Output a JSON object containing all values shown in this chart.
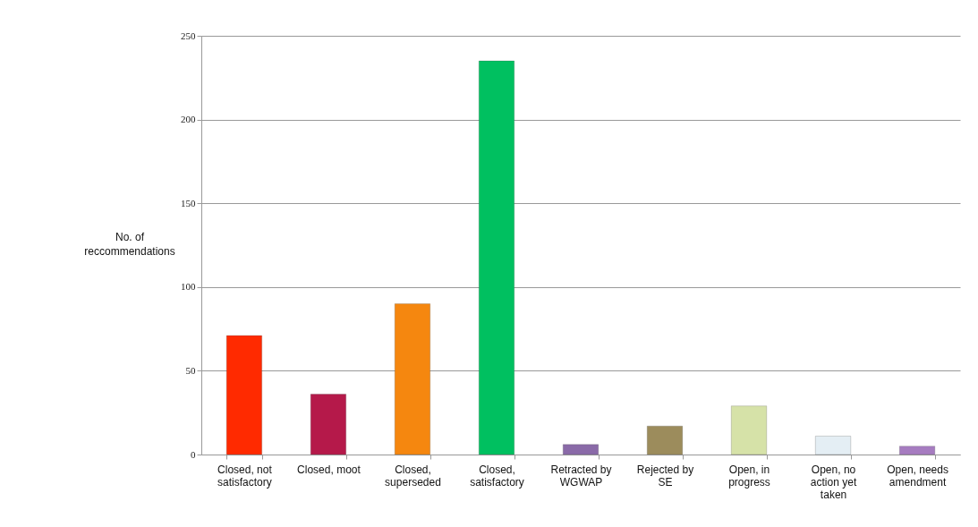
{
  "chart_data": {
    "type": "bar",
    "ylabel": "No. of reccommendations",
    "categories": [
      "Closed, not satisfactory",
      "Closed, moot",
      "Closed, superseded",
      "Closed, satisfactory",
      "Retracted by WGWAP",
      "Rejected by SE",
      "Open, in progress",
      "Open, no action yet taken",
      "Open, needs amendment"
    ],
    "values": [
      71,
      36,
      90,
      235,
      6,
      17,
      29,
      11,
      5
    ],
    "colors": [
      "#ff2a00",
      "#b5194a",
      "#f5870f",
      "#00c060",
      "#8a6aa8",
      "#9c8c5c",
      "#d6e2a8",
      "#e4eef4",
      "#a67cc0"
    ],
    "ylim": [
      0,
      250
    ],
    "yticks": [
      0,
      50,
      100,
      150,
      200,
      250
    ],
    "grid": "y"
  }
}
